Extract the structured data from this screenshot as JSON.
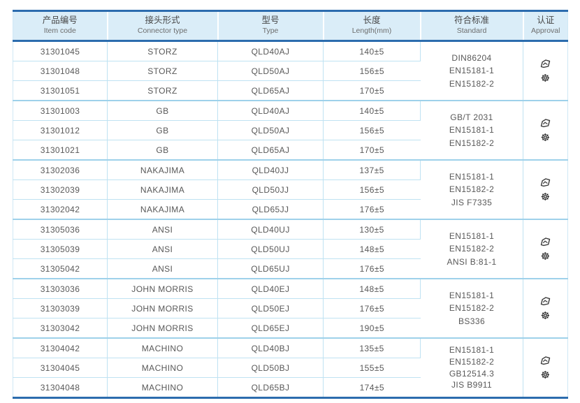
{
  "table": {
    "columns": [
      {
        "zh": "产品编号",
        "en": "Item code"
      },
      {
        "zh": "接头形式",
        "en": "Connector type"
      },
      {
        "zh": "型号",
        "en": "Type"
      },
      {
        "zh": "长度",
        "en": "Length(mm)"
      },
      {
        "zh": "符合标准",
        "en": "Standard"
      },
      {
        "zh": "认证",
        "en": "Approval"
      }
    ],
    "groups": [
      {
        "rows": [
          {
            "code": "31301045",
            "connector": "STORZ",
            "type": "QLD40AJ",
            "length": "140±5"
          },
          {
            "code": "31301048",
            "connector": "STORZ",
            "type": "QLD50AJ",
            "length": "156±5"
          },
          {
            "code": "31301051",
            "connector": "STORZ",
            "type": "QLD65AJ",
            "length": "170±5"
          }
        ],
        "standards": [
          "DIN86204",
          "EN15181-1",
          "EN15182-2"
        ],
        "approval_icons": [
          "type-approval-mark-icon",
          "wheelmark-icon"
        ]
      },
      {
        "rows": [
          {
            "code": "31301003",
            "connector": "GB",
            "type": "QLD40AJ",
            "length": "140±5"
          },
          {
            "code": "31301012",
            "connector": "GB",
            "type": "QLD50AJ",
            "length": "156±5"
          },
          {
            "code": "31301021",
            "connector": "GB",
            "type": "QLD65AJ",
            "length": "170±5"
          }
        ],
        "standards": [
          "GB/T 2031",
          "EN15181-1",
          "EN15182-2"
        ],
        "approval_icons": [
          "type-approval-mark-icon",
          "wheelmark-icon"
        ]
      },
      {
        "rows": [
          {
            "code": "31302036",
            "connector": "NAKAJIMA",
            "type": "QLD40JJ",
            "length": "137±5"
          },
          {
            "code": "31302039",
            "connector": "NAKAJIMA",
            "type": "QLD50JJ",
            "length": "156±5"
          },
          {
            "code": "31302042",
            "connector": "NAKAJIMA",
            "type": "QLD65JJ",
            "length": "176±5"
          }
        ],
        "standards": [
          "EN15181-1",
          "EN15182-2",
          "JIS F7335"
        ],
        "approval_icons": [
          "type-approval-mark-icon",
          "wheelmark-icon"
        ]
      },
      {
        "rows": [
          {
            "code": "31305036",
            "connector": "ANSI",
            "type": "QLD40UJ",
            "length": "130±5"
          },
          {
            "code": "31305039",
            "connector": "ANSI",
            "type": "QLD50UJ",
            "length": "148±5"
          },
          {
            "code": "31305042",
            "connector": "ANSI",
            "type": "QLD65UJ",
            "length": "176±5"
          }
        ],
        "standards": [
          "EN15181-1",
          "EN15182-2",
          "ANSI B:81-1"
        ],
        "approval_icons": [
          "type-approval-mark-icon",
          "wheelmark-icon"
        ]
      },
      {
        "rows": [
          {
            "code": "31303036",
            "connector": "JOHN MORRIS",
            "type": "QLD40EJ",
            "length": "148±5"
          },
          {
            "code": "31303039",
            "connector": "JOHN MORRIS",
            "type": "QLD50EJ",
            "length": "176±5"
          },
          {
            "code": "31303042",
            "connector": "JOHN MORRIS",
            "type": "QLD65EJ",
            "length": "190±5"
          }
        ],
        "standards": [
          "EN15181-1",
          "EN15182-2",
          "BS336"
        ],
        "approval_icons": [
          "type-approval-mark-icon",
          "wheelmark-icon"
        ]
      },
      {
        "rows": [
          {
            "code": "31304042",
            "connector": "MACHINO",
            "type": "QLD40BJ",
            "length": "135±5"
          },
          {
            "code": "31304045",
            "connector": "MACHINO",
            "type": "QLD50BJ",
            "length": "155±5"
          },
          {
            "code": "31304048",
            "connector": "MACHINO",
            "type": "QLD65BJ",
            "length": "174±5"
          }
        ],
        "standards": [
          "EN15181-1",
          "EN15182-2",
          "GB12514.3",
          "JIS B9911"
        ],
        "approval_icons": [
          "type-approval-mark-icon",
          "wheelmark-icon"
        ]
      }
    ]
  },
  "icons": {
    "wheelmark_glyph": "☸"
  },
  "colors": {
    "header_bg": "#daedf8",
    "dark_border": "#2c6cae",
    "row_line": "#bfe2f2",
    "group_line": "#9ed1ea",
    "text": "#585858"
  }
}
